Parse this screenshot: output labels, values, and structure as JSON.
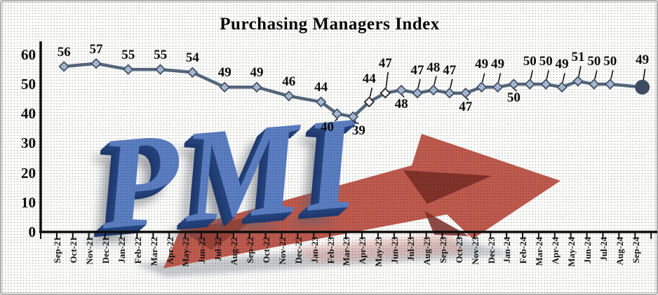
{
  "title": "Purchasing Managers Index",
  "watermark": {
    "text": "PMI"
  },
  "decorations": {
    "watermark_text": "PMI",
    "arrow_direction": "up-right",
    "texture": "halftone-dots"
  },
  "colors": {
    "line": "#55687f",
    "marker_fill": "#a9bad3",
    "marker_stroke": "#44546a",
    "marker_open_fill": "#fbfbfb",
    "end_dot": "#3d4e63",
    "axis": "#0e0e0e",
    "arrow": "#bf5a4e",
    "arrow_dark": "#7b2d26",
    "arrow_tail_dark": "#8a372e",
    "shadow_gray": "#9aa0a6",
    "reflection_pink": "#dfa9a1",
    "pmi_blue": "#5b7ec2",
    "pmi_extrude": "#21417f"
  },
  "y_axis": {
    "min": 0,
    "max": 60,
    "ticks": [
      60,
      50,
      40,
      30,
      20,
      10,
      0
    ]
  },
  "x_axis": {
    "labels": [
      "Sep-21",
      "Oct-21",
      "Nov-21",
      "Dec-21",
      "Jan-22",
      "Feb-22",
      "Mar-22",
      "Apr-22",
      "May-22",
      "Jun-22",
      "Jul-22",
      "Aug-22",
      "Sep-22",
      "Oct-22",
      "Nov-22",
      "Dec-22",
      "Jan-23",
      "Feb-23",
      "Mar-23",
      "Apr-23",
      "May-23",
      "Jun-23",
      "Jul-23",
      "Aug-23",
      "Sep-23",
      "Oct-23",
      "Nov-23",
      "Dec-23",
      "Jan-24",
      "Feb-24",
      "Mar-24",
      "Apr-24",
      "May-24",
      "Jun-24",
      "Jul-24",
      "Aug-24",
      "Sep-24"
    ]
  },
  "points": [
    {
      "c": 1,
      "v": 56,
      "pos": "a"
    },
    {
      "c": 3,
      "v": 57,
      "pos": "a"
    },
    {
      "c": 5,
      "v": 55,
      "pos": "a"
    },
    {
      "c": 7,
      "v": 55,
      "pos": "a"
    },
    {
      "c": 9,
      "v": 54,
      "pos": "a"
    },
    {
      "c": 11,
      "v": 49,
      "pos": "a"
    },
    {
      "c": 13,
      "v": 49,
      "pos": "a"
    },
    {
      "c": 15,
      "v": 46,
      "pos": "a"
    },
    {
      "c": 17,
      "v": 44,
      "pos": "a"
    },
    {
      "c": 18,
      "v": 40,
      "pos": "b",
      "dx": -14,
      "leader": true
    },
    {
      "c": 19,
      "v": 39,
      "pos": "b",
      "dx": 8,
      "leader": true
    },
    {
      "c": 20,
      "v": 44,
      "pos": "a",
      "dy": -12,
      "open": true,
      "leader": true
    },
    {
      "c": 21,
      "v": 47,
      "pos": "a",
      "dy": -22,
      "open": true,
      "leader": true
    },
    {
      "c": 22,
      "v": 48,
      "pos": "b",
      "leader": true
    },
    {
      "c": 23,
      "v": 47,
      "pos": "a",
      "dy": -12,
      "leader": true
    },
    {
      "c": 24,
      "v": 48,
      "pos": "a",
      "dy": -12,
      "leader": true
    },
    {
      "c": 25,
      "v": 47,
      "pos": "a",
      "dy": -12,
      "leader": true
    },
    {
      "c": 26,
      "v": 47,
      "pos": "b",
      "leader": true
    },
    {
      "c": 27,
      "v": 49,
      "pos": "a",
      "dy": -12,
      "leader": true
    },
    {
      "c": 28,
      "v": 49,
      "pos": "a",
      "dy": -12,
      "leader": true
    },
    {
      "c": 29,
      "v": 50,
      "pos": "b",
      "leader": true
    },
    {
      "c": 30,
      "v": 50,
      "pos": "a",
      "dy": -12,
      "leader": true
    },
    {
      "c": 31,
      "v": 50,
      "pos": "a",
      "dy": -12,
      "leader": true
    },
    {
      "c": 32,
      "v": 49,
      "pos": "a",
      "dy": -12,
      "leader": true
    },
    {
      "c": 33,
      "v": 51,
      "pos": "a",
      "dy": -14,
      "leader": true
    },
    {
      "c": 34,
      "v": 50,
      "pos": "a",
      "dy": -12,
      "leader": true
    },
    {
      "c": 35,
      "v": 50,
      "pos": "a",
      "dy": -12,
      "leader": true
    },
    {
      "c": 37,
      "v": 49,
      "pos": "a",
      "dy": -18,
      "end": true,
      "leader": true
    }
  ],
  "chart_data": {
    "type": "line",
    "title": "Purchasing Managers Index",
    "x": [
      "Sep-21",
      "Nov-21",
      "Jan-22",
      "Mar-22",
      "May-22",
      "Jul-22",
      "Sep-22",
      "Nov-22",
      "Jan-23",
      "Feb-23",
      "Mar-23",
      "Apr-23",
      "May-23",
      "Jun-23",
      "Jul-23",
      "Aug-23",
      "Sep-23",
      "Oct-23",
      "Nov-23",
      "Dec-23",
      "Jan-24",
      "Feb-24",
      "Mar-24",
      "Apr-24",
      "May-24",
      "Jun-24",
      "Jul-24",
      "Sep-24"
    ],
    "values": [
      56,
      57,
      55,
      55,
      54,
      49,
      49,
      46,
      44,
      40,
      39,
      44,
      47,
      48,
      47,
      48,
      47,
      47,
      49,
      49,
      50,
      50,
      50,
      49,
      51,
      50,
      50,
      49
    ],
    "xlabel": "",
    "ylabel": "",
    "ylim": [
      0,
      60
    ],
    "y_ticks": [
      0,
      10,
      20,
      30,
      40,
      50,
      60
    ],
    "grid": false,
    "legend": "none",
    "marker": "diamond",
    "notes": "Early points plotted every other month; final point emphasized with a large dot; values labeled on chart"
  }
}
